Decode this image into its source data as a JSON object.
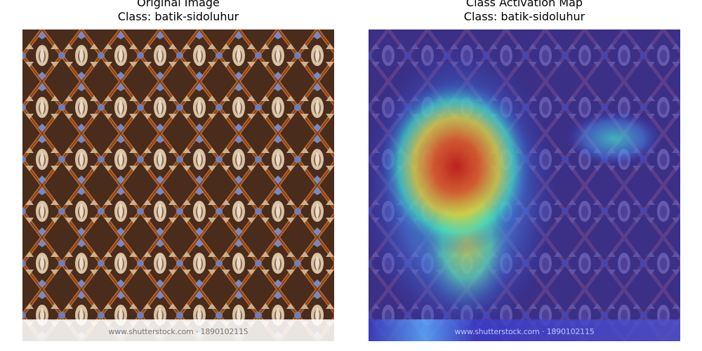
{
  "panels": [
    {
      "title_line1": "Original Image",
      "title_line2": "Class: batik-sidoluhur",
      "image": "batik-pattern",
      "watermark": "www.shutterstock.com · 1890102115"
    },
    {
      "title_line1": "Class Activation Map",
      "title_line2": "Class: batik-sidoluhur",
      "image": "batik-pattern-with-heatmap-overlay",
      "watermark": "www.shutterstock.com · 1890102115"
    }
  ],
  "colors": {
    "batik_base": "#5a3520",
    "batik_orange": "#b9652b",
    "batik_cream": "#d9c3a3",
    "batik_blue": "#6f7fb5",
    "heat_hot": "#d42a10",
    "heat_cold": "#3b35b5"
  }
}
